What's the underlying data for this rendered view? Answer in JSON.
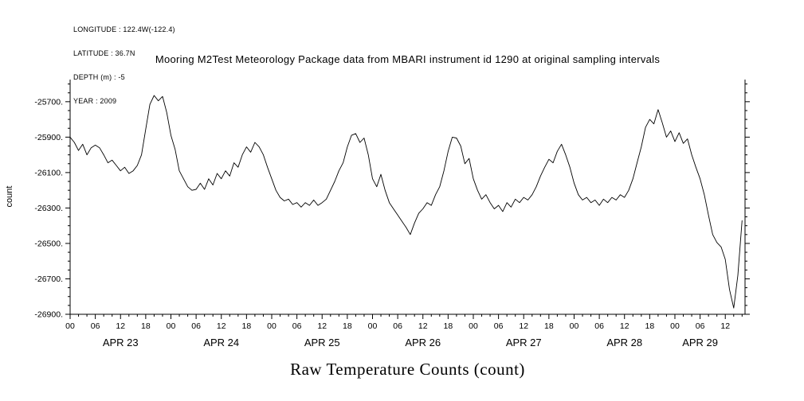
{
  "header": {
    "longitude": "LONGITUDE : 122.4W(-122.4)",
    "latitude": "LATITUDE : 36.7N",
    "depth": "DEPTH (m) : -5",
    "year": "YEAR : 2009"
  },
  "title": "Mooring M2Test Meteorology Package data from MBARI instrument id 1290 at original sampling intervals",
  "bottom_label": "Raw Temperature Counts (count)",
  "colors": {
    "background": "#ffffff",
    "line": "#000000",
    "axis": "#000000"
  },
  "chart_data": {
    "type": "line",
    "title": "Mooring M2Test Meteorology Package data from MBARI instrument id 1290 at original sampling intervals",
    "xlabel": "Raw Temperature Counts (count)",
    "ylabel": "count",
    "grid": false,
    "legend": "none",
    "line_color": "#000000",
    "y_axis": {
      "min": -26900,
      "max": -25575,
      "minor_step": 50,
      "ticks": [
        {
          "value": -25700,
          "label": "-25700."
        },
        {
          "value": -25900,
          "label": "-25900."
        },
        {
          "value": -26100,
          "label": "-26100."
        },
        {
          "value": -26300,
          "label": "-26300."
        },
        {
          "value": -26500,
          "label": "-26500."
        },
        {
          "value": -26700,
          "label": "-26700."
        },
        {
          "value": -26900,
          "label": "-26900."
        }
      ]
    },
    "x_axis": {
      "unit": "hours since APR 23 00:00, 2009",
      "min_hours": 0,
      "max_hours": 160.7,
      "major_tick_step": 6,
      "minor_tick_step": 2,
      "hour_cycle_labels": [
        "00",
        "06",
        "12",
        "18"
      ],
      "day_labels": [
        {
          "label": "APR 23",
          "hour": 12
        },
        {
          "label": "APR 24",
          "hour": 36
        },
        {
          "label": "APR 25",
          "hour": 60
        },
        {
          "label": "APR 26",
          "hour": 84
        },
        {
          "label": "APR 27",
          "hour": 108
        },
        {
          "label": "APR 28",
          "hour": 132
        },
        {
          "label": "APR 29",
          "hour": 150
        }
      ]
    },
    "series": [
      {
        "name": "raw temperature counts",
        "x_start_hour": 0,
        "x_step_hours": 1,
        "values": [
          -25900,
          -25930,
          -25975,
          -25940,
          -26000,
          -25960,
          -25945,
          -25960,
          -26000,
          -26045,
          -26030,
          -26060,
          -26090,
          -26070,
          -26105,
          -26090,
          -26060,
          -26000,
          -25855,
          -25715,
          -25665,
          -25695,
          -25670,
          -25760,
          -25890,
          -25970,
          -26090,
          -26135,
          -26180,
          -26200,
          -26195,
          -26160,
          -26195,
          -26135,
          -26170,
          -26105,
          -26135,
          -26090,
          -26120,
          -26045,
          -26070,
          -26000,
          -25955,
          -25985,
          -25930,
          -25955,
          -26000,
          -26070,
          -26135,
          -26200,
          -26240,
          -26260,
          -26250,
          -26280,
          -26270,
          -26295,
          -26270,
          -26285,
          -26255,
          -26285,
          -26270,
          -26250,
          -26200,
          -26150,
          -26090,
          -26045,
          -25955,
          -25890,
          -25880,
          -25930,
          -25905,
          -26000,
          -26135,
          -26180,
          -26110,
          -26200,
          -26270,
          -26305,
          -26340,
          -26375,
          -26410,
          -26450,
          -26385,
          -26330,
          -26305,
          -26270,
          -26285,
          -26225,
          -26180,
          -26090,
          -25980,
          -25900,
          -25905,
          -25950,
          -26050,
          -26020,
          -26135,
          -26200,
          -26250,
          -26225,
          -26270,
          -26305,
          -26285,
          -26320,
          -26270,
          -26295,
          -26250,
          -26270,
          -26240,
          -26255,
          -26225,
          -26180,
          -26120,
          -26070,
          -26025,
          -26045,
          -25980,
          -25940,
          -26000,
          -26070,
          -26160,
          -26225,
          -26255,
          -26240,
          -26270,
          -26255,
          -26285,
          -26250,
          -26270,
          -26240,
          -26255,
          -26225,
          -26240,
          -26200,
          -26135,
          -26045,
          -25955,
          -25845,
          -25800,
          -25825,
          -25745,
          -25820,
          -25900,
          -25865,
          -25925,
          -25875,
          -25935,
          -25910,
          -26000,
          -26070,
          -26135,
          -26225,
          -26340,
          -26450,
          -26495,
          -26520,
          -26590,
          -26760,
          -26865,
          -26680,
          -26370
        ]
      }
    ]
  }
}
